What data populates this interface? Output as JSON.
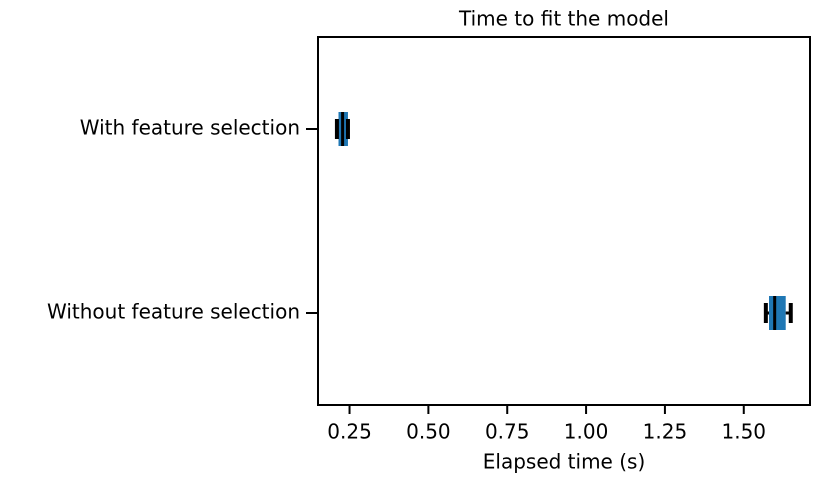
{
  "chart_data": {
    "type": "boxplot",
    "title": "Time to fit the model",
    "x_label": "Elapsed time (s)",
    "categories": [
      "With feature selection",
      "Without feature selection"
    ],
    "boxes": [
      {
        "min": 0.21,
        "q1": 0.215,
        "median": 0.228,
        "q3": 0.245,
        "max": 0.245
      },
      {
        "min": 1.57,
        "q1": 1.58,
        "median": 1.598,
        "q3": 1.633,
        "max": 1.649
      }
    ],
    "color": "#1f77b4",
    "line_color": "#000000",
    "xlim": [
      0.15,
      1.71
    ],
    "xticks": [
      {
        "value": 0.25,
        "label": "0.25"
      },
      {
        "value": 0.5,
        "label": "0.50"
      },
      {
        "value": 0.75,
        "label": "0.75"
      },
      {
        "value": 1.0,
        "label": "1.00"
      },
      {
        "value": 1.25,
        "label": "1.25"
      },
      {
        "value": 1.5,
        "label": "1.50"
      }
    ]
  }
}
